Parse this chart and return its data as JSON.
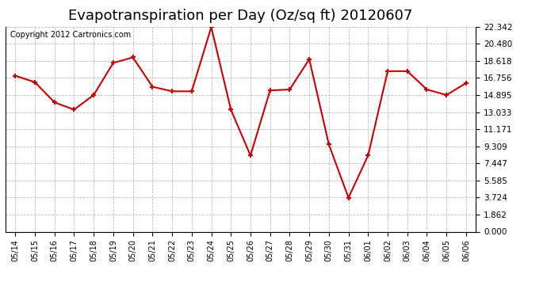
{
  "title": "Evapotranspiration per Day (Oz/sq ft) 20120607",
  "copyright_text": "Copyright 2012 Cartronics.com",
  "dates": [
    "05/14",
    "05/15",
    "05/16",
    "05/17",
    "05/18",
    "05/19",
    "05/20",
    "05/21",
    "05/22",
    "05/23",
    "05/24",
    "05/25",
    "05/26",
    "05/27",
    "05/28",
    "05/29",
    "05/30",
    "05/31",
    "06/01",
    "06/02",
    "06/03",
    "06/04",
    "06/05",
    "06/06"
  ],
  "values": [
    17.0,
    16.3,
    14.1,
    13.3,
    14.9,
    18.4,
    19.0,
    15.8,
    15.3,
    15.3,
    22.3,
    13.3,
    8.3,
    15.4,
    15.5,
    18.8,
    9.5,
    3.7,
    8.3,
    17.5,
    17.5,
    15.5,
    14.9,
    16.2
  ],
  "line_color": "#cc0000",
  "marker_color": "#cc0000",
  "background_color": "#ffffff",
  "grid_color": "#bbbbbb",
  "yticks": [
    0.0,
    1.862,
    3.724,
    5.585,
    7.447,
    9.309,
    11.171,
    13.033,
    14.895,
    16.756,
    18.618,
    20.48,
    22.342
  ],
  "ylim": [
    0,
    22.342
  ],
  "title_fontsize": 13,
  "copyright_fontsize": 7,
  "tick_fontsize": 7,
  "ytick_fontsize": 7.5
}
